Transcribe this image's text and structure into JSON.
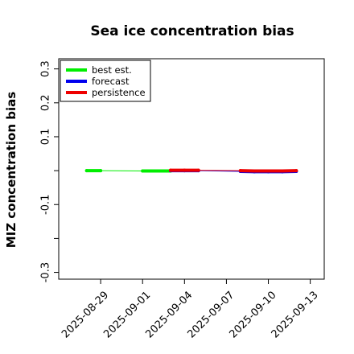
{
  "chart_data": {
    "type": "line",
    "title": "Sea ice concentration bias",
    "xlabel": "",
    "ylabel": "MIZ concentration bias",
    "ylim": [
      -0.32,
      0.33
    ],
    "yticks": [
      -0.3,
      -0.2,
      -0.1,
      0.0,
      0.1,
      0.2,
      0.3
    ],
    "ytick_labels": [
      "-0.3",
      "",
      "-0.1",
      "",
      "0.1",
      "0.2",
      "0.3"
    ],
    "xlim": [
      "2025-08-26",
      "2025-09-14"
    ],
    "xticks": [
      "2025-08-29",
      "2025-09-01",
      "2025-09-04",
      "2025-09-07",
      "2025-09-10",
      "2025-09-13"
    ],
    "highlight_tick": "2025-09-04",
    "highlight_color": "#228b22",
    "grid": false,
    "legend_position": "top-left",
    "series": [
      {
        "name": "best est.",
        "color": "#00ee00",
        "points": [
          {
            "x": "2025-08-28",
            "y": 0.0
          },
          {
            "x": "2025-08-29",
            "y": 0.0
          },
          {
            "x": "2025-09-01",
            "y": -0.001
          },
          {
            "x": "2025-09-02",
            "y": -0.001
          },
          {
            "x": "2025-09-03",
            "y": -0.001
          }
        ]
      },
      {
        "name": "forecast",
        "color": "#0000ee",
        "points": [
          {
            "x": "2025-09-03",
            "y": 0.0
          },
          {
            "x": "2025-09-04",
            "y": 0.0
          },
          {
            "x": "2025-09-05",
            "y": 0.0
          },
          {
            "x": "2025-09-08",
            "y": -0.002
          },
          {
            "x": "2025-09-09",
            "y": -0.003
          },
          {
            "x": "2025-09-10",
            "y": -0.003
          },
          {
            "x": "2025-09-11",
            "y": -0.003
          },
          {
            "x": "2025-09-12",
            "y": -0.002
          }
        ]
      },
      {
        "name": "persistence",
        "color": "#ee0000",
        "points": [
          {
            "x": "2025-09-03",
            "y": 0.001
          },
          {
            "x": "2025-09-04",
            "y": 0.001
          },
          {
            "x": "2025-09-05",
            "y": 0.001
          },
          {
            "x": "2025-09-08",
            "y": 0.0
          },
          {
            "x": "2025-09-09",
            "y": -0.001
          },
          {
            "x": "2025-09-10",
            "y": -0.001
          },
          {
            "x": "2025-09-11",
            "y": -0.001
          },
          {
            "x": "2025-09-12",
            "y": 0.0
          }
        ]
      }
    ]
  }
}
